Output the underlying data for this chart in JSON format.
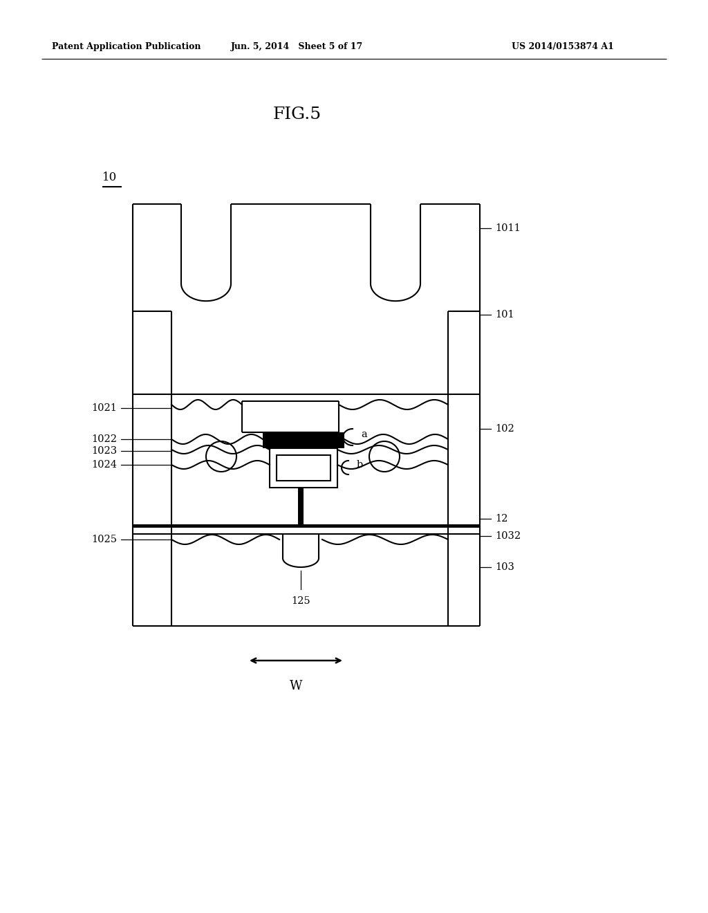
{
  "bg_color": "#ffffff",
  "title": "FIG.5",
  "header_left": "Patent Application Publication",
  "header_mid": "Jun. 5, 2014   Sheet 5 of 17",
  "header_right": "US 2014/0153874 A1",
  "line_color": "#000000",
  "label_color": "#000000",
  "header_fontsize": 9,
  "title_fontsize": 18,
  "label_fontsize": 10.5
}
